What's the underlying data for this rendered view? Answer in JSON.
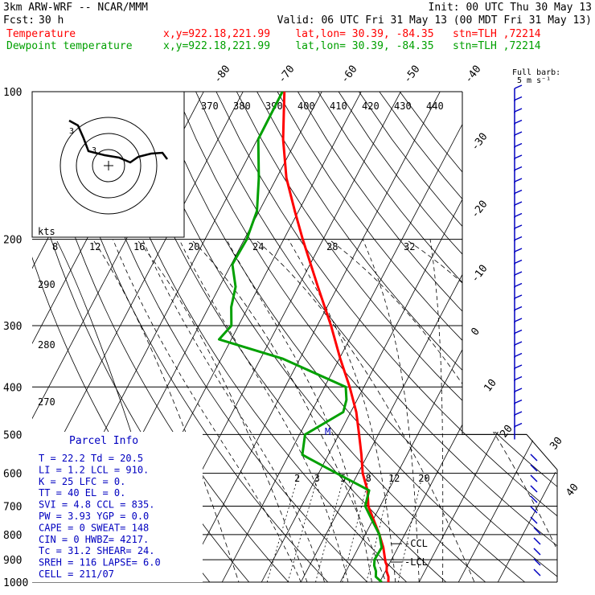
{
  "header": {
    "model": "3km ARW-WRF -- NCAR/MMM",
    "init": "Init: 00 UTC Thu 30 May 13",
    "fcst_label": "Fcst:",
    "fcst_value": "30 h",
    "valid": "Valid: 06 UTC Fri 31 May 13 (00 MDT Fri 31 May 13)"
  },
  "legend": [
    {
      "name": "Temperature",
      "info": "x,y=922.18,221.99    lat,lon= 30.39, -84.35   stn=TLH ,72214",
      "color": "#ff0000"
    },
    {
      "name": "Dewpoint temperature",
      "info": "x,y=922.18,221.99    lat,lon= 30.39, -84.35   stn=TLH ,72214",
      "color": "#00a000"
    }
  ],
  "parcel_info": {
    "title": "Parcel Info",
    "rows": [
      "T  =    22.2  Td =  20.5",
      "LI =     1.2  LCL =  910.",
      "K  =     25  LFC =    0.",
      "TT =     40  EL  =    0.",
      "SVI =    4.8  CCL =  835.",
      "PW =   3.93  YGP =   0.0",
      "CAPE =     0  SWEAT=  148",
      "CIN =      0  HWBZ= 4217.",
      "Tc =    31.2  SHEAR=  24.",
      "SREH =   116  LAPSE=  6.0",
      "CELL = 211/07"
    ]
  },
  "hodograph": {
    "kts_label": "kts",
    "ring_labels": [
      "8",
      "12",
      "16",
      "20",
      "24",
      "28",
      "32"
    ]
  },
  "wind": {
    "full_barb_label": "Full barb:",
    "full_barb_value": "5 m s⁻¹"
  },
  "annotations": {
    "lcl": "LCL",
    "ccl": "CCL",
    "m": "M"
  },
  "chart_data": {
    "type": "line",
    "diagram": "skew-T log-P",
    "pressure_levels": [
      100,
      200,
      300,
      400,
      500,
      600,
      700,
      800,
      900,
      1000
    ],
    "pressure_labels": [
      "100",
      "200",
      "300",
      "400",
      "500",
      "600",
      "700",
      "800",
      "900",
      "1000"
    ],
    "skewed_temp_labels": [
      "-80",
      "-70",
      "-60",
      "-50",
      "-40",
      "-30",
      "-20",
      "-10",
      "0",
      "10",
      "20",
      "30",
      "40"
    ],
    "theta_labels": [
      "370",
      "380",
      "390",
      "400",
      "410",
      "420",
      "430",
      "440"
    ],
    "theta_side_labels": [
      "290",
      "280",
      "270"
    ],
    "mixing_ratio_labels": [
      "2",
      "3",
      "5",
      "8",
      "12",
      "20"
    ],
    "series": [
      {
        "name": "Temperature",
        "color": "#ff0000",
        "points": [
          [
            1000,
            22.2
          ],
          [
            975,
            21.5
          ],
          [
            950,
            20.3
          ],
          [
            925,
            19.6
          ],
          [
            910,
            18.8
          ],
          [
            850,
            16.3
          ],
          [
            800,
            13.6
          ],
          [
            750,
            10.4
          ],
          [
            700,
            7.0
          ],
          [
            650,
            4.7
          ],
          [
            600,
            1.2
          ],
          [
            550,
            -1.6
          ],
          [
            500,
            -4.9
          ],
          [
            450,
            -8.6
          ],
          [
            400,
            -13.6
          ],
          [
            350,
            -19.8
          ],
          [
            300,
            -26.5
          ],
          [
            250,
            -35.0
          ],
          [
            200,
            -45.2
          ],
          [
            175,
            -51.0
          ],
          [
            150,
            -57.5
          ],
          [
            125,
            -63.5
          ],
          [
            100,
            -69.5
          ]
        ]
      },
      {
        "name": "Dewpoint temperature",
        "color": "#00a000",
        "points": [
          [
            1000,
            20.5
          ],
          [
            975,
            18.3
          ],
          [
            950,
            17.6
          ],
          [
            925,
            16.4
          ],
          [
            900,
            15.7
          ],
          [
            850,
            15.9
          ],
          [
            800,
            13.6
          ],
          [
            750,
            10.0
          ],
          [
            700,
            6.2
          ],
          [
            650,
            5.1
          ],
          [
            600,
            -5.4
          ],
          [
            550,
            -16.6
          ],
          [
            500,
            -18.6
          ],
          [
            450,
            -11.9
          ],
          [
            425,
            -12.7
          ],
          [
            400,
            -14.6
          ],
          [
            350,
            -34.5
          ],
          [
            320,
            -53.1
          ],
          [
            300,
            -51.8
          ],
          [
            275,
            -54.3
          ],
          [
            250,
            -55.9
          ],
          [
            225,
            -59.7
          ],
          [
            200,
            -59.4
          ],
          [
            175,
            -60.6
          ],
          [
            150,
            -64.5
          ],
          [
            125,
            -69.8
          ],
          [
            100,
            -70.0
          ]
        ]
      }
    ],
    "lcl_hpa": 910,
    "ccl_hpa": 835
  }
}
